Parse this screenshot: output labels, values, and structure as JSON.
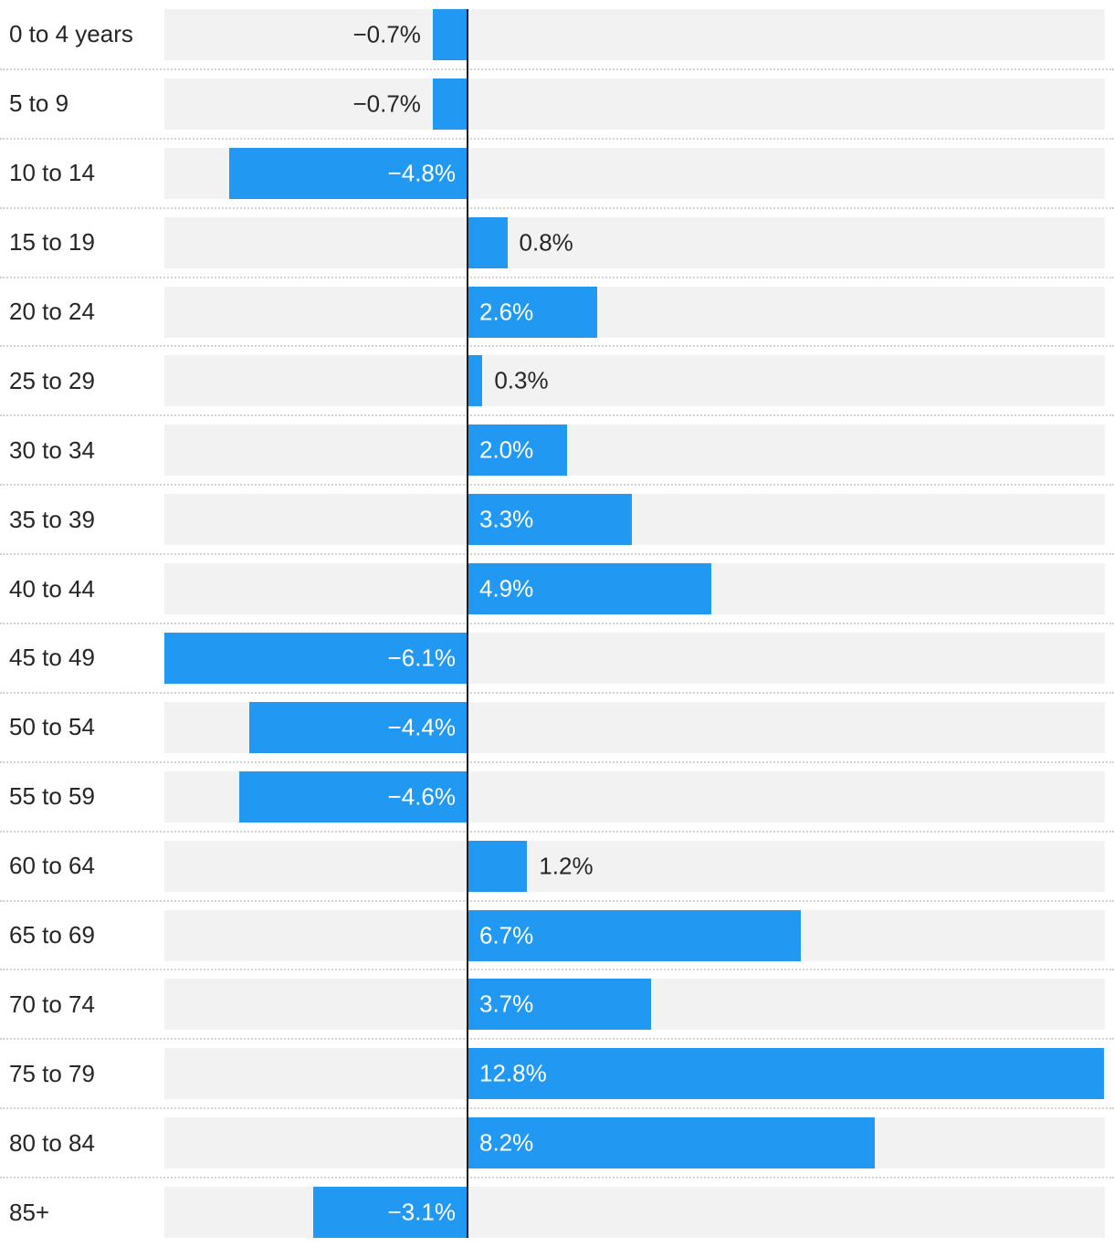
{
  "chart_data": {
    "type": "bar",
    "orientation": "horizontal",
    "title": "",
    "xlabel": "",
    "ylabel": "",
    "unit": "%",
    "categories": [
      "0 to 4 years",
      "5 to 9",
      "10 to 14",
      "15 to 19",
      "20 to 24",
      "25 to 29",
      "30 to 34",
      "35 to 39",
      "40 to 44",
      "45 to 49",
      "50 to 54",
      "55 to 59",
      "60 to 64",
      "65 to 69",
      "70 to 74",
      "75 to 79",
      "80 to 84",
      "85+"
    ],
    "values": [
      -0.7,
      -0.7,
      -4.8,
      0.8,
      2.6,
      0.3,
      2.0,
      3.3,
      4.9,
      -6.1,
      -4.4,
      -4.6,
      1.2,
      6.7,
      3.7,
      12.8,
      8.2,
      -3.1
    ],
    "value_labels": [
      "−0.7%",
      "−0.7%",
      "−4.8%",
      "0.8%",
      "2.6%",
      "0.3%",
      "2.0%",
      "3.3%",
      "4.9%",
      "−6.1%",
      "−4.4%",
      "−4.6%",
      "1.2%",
      "6.7%",
      "3.7%",
      "12.8%",
      "8.2%",
      "−3.1%"
    ],
    "xlim": [
      -6.1,
      12.83
    ],
    "inside_label_min_abs": 2.0,
    "grid": "dotted horizontal row separators, no vertical gridlines",
    "legend": "none",
    "baseline": "vertical zero line"
  },
  "style": {
    "bar_color": "#2199f2",
    "track_color": "#f2f2f2",
    "axis_color": "#1a1a1a",
    "separator_color": "#d2d2d2",
    "category_label_color": "#262626",
    "value_outside_color": "#262626",
    "value_inside_color": "#ffffff",
    "background_color": "#ffffff"
  }
}
